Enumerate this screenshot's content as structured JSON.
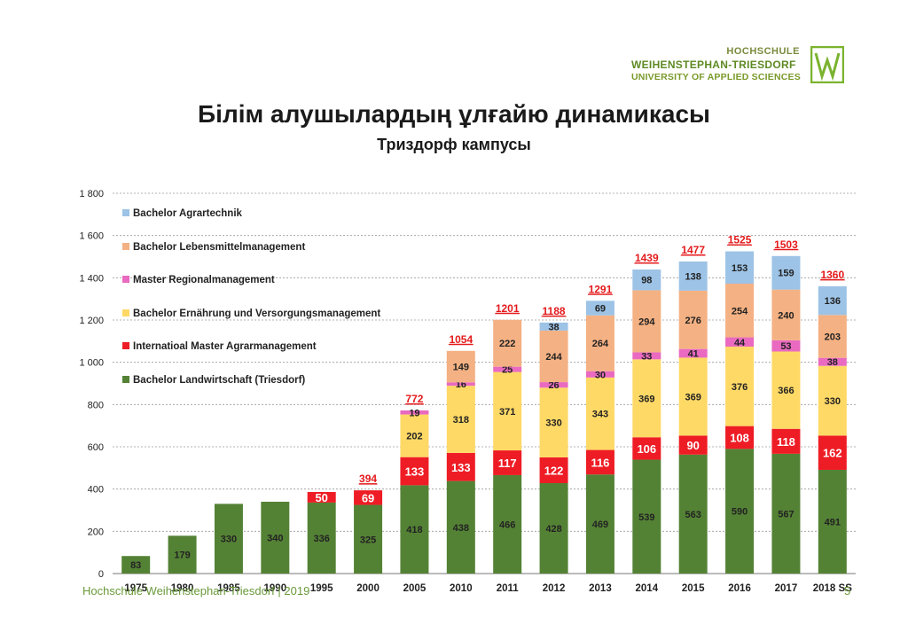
{
  "header": {
    "title": "Білім алушылардың ұлғайю динамикасы",
    "subtitle": "Триздорф кампусы"
  },
  "logo": {
    "line1": "HOCHSCHULE",
    "line2": "WEIHENSTEPHAN-TRIESDORF",
    "line3": "UNIVERSITY OF APPLIED SCIENCES"
  },
  "footer": {
    "text": "Hochschule Weihenstephan-Triesdorf | 2019",
    "page": "5"
  },
  "colors": {
    "landwirtschaft": "#548235",
    "agrarmanagement": "#ee1c25",
    "ernaehrung": "#ffd966",
    "regional": "#e96ac0",
    "lebensmittel": "#f4b183",
    "agrartechnik": "#9dc3e6",
    "total": "#e41a1c",
    "grid": "#9a9a9a"
  },
  "chart_data": {
    "type": "bar",
    "stacked": true,
    "categories": [
      "1975",
      "1980",
      "1985",
      "1990",
      "1995",
      "2000",
      "2005",
      "2010",
      "2011",
      "2012",
      "2013",
      "2014",
      "2015",
      "2016",
      "2017",
      "2018 SS"
    ],
    "ylim": [
      0,
      1800
    ],
    "yticks": [
      "0",
      "200",
      "400",
      "600",
      "800",
      "1 000",
      "1 200",
      "1 400",
      "1 600",
      "1 800"
    ],
    "ytick_values": [
      0,
      200,
      400,
      600,
      800,
      1000,
      1200,
      1400,
      1600,
      1800
    ],
    "grid": true,
    "legend_position": "top-left",
    "series": [
      {
        "name": "Bachelor Landwirtschaft (Triesdorf)",
        "key": "landwirtschaft",
        "values": [
          83,
          179,
          330,
          340,
          336,
          325,
          418,
          438,
          466,
          428,
          469,
          539,
          563,
          590,
          567,
          491
        ]
      },
      {
        "name": "Internatioal Master Agrarmanagement",
        "key": "agrarmanagement",
        "values": [
          null,
          null,
          null,
          null,
          50,
          69,
          133,
          133,
          117,
          122,
          116,
          106,
          90,
          108,
          118,
          162
        ]
      },
      {
        "name": "Bachelor Ernährung und Versorgungsmanagement",
        "key": "ernaehrung",
        "values": [
          null,
          null,
          null,
          null,
          null,
          null,
          202,
          318,
          371,
          330,
          343,
          369,
          369,
          376,
          366,
          330
        ]
      },
      {
        "name": "Master Regionalmanagement",
        "key": "regional",
        "values": [
          null,
          null,
          null,
          null,
          null,
          null,
          19,
          16,
          25,
          26,
          30,
          33,
          41,
          44,
          53,
          38
        ]
      },
      {
        "name": "Bachelor Lebensmittelmanagement",
        "key": "lebensmittel",
        "values": [
          null,
          null,
          null,
          null,
          null,
          null,
          null,
          149,
          222,
          244,
          264,
          294,
          276,
          254,
          240,
          203
        ]
      },
      {
        "name": "Bachelor Agrartechnik",
        "key": "agrartechnik",
        "values": [
          null,
          null,
          null,
          null,
          null,
          null,
          null,
          null,
          null,
          38,
          69,
          98,
          138,
          153,
          159,
          136
        ]
      }
    ],
    "totals": [
      null,
      null,
      null,
      null,
      null,
      "394",
      "772",
      "1054",
      "1201",
      "1188",
      "1291",
      "1439",
      "1477",
      "1525",
      "1503",
      "1360"
    ],
    "legend_order": [
      "agrartechnik",
      "lebensmittel",
      "regional",
      "ernaehrung",
      "agrarmanagement",
      "landwirtschaft"
    ]
  }
}
